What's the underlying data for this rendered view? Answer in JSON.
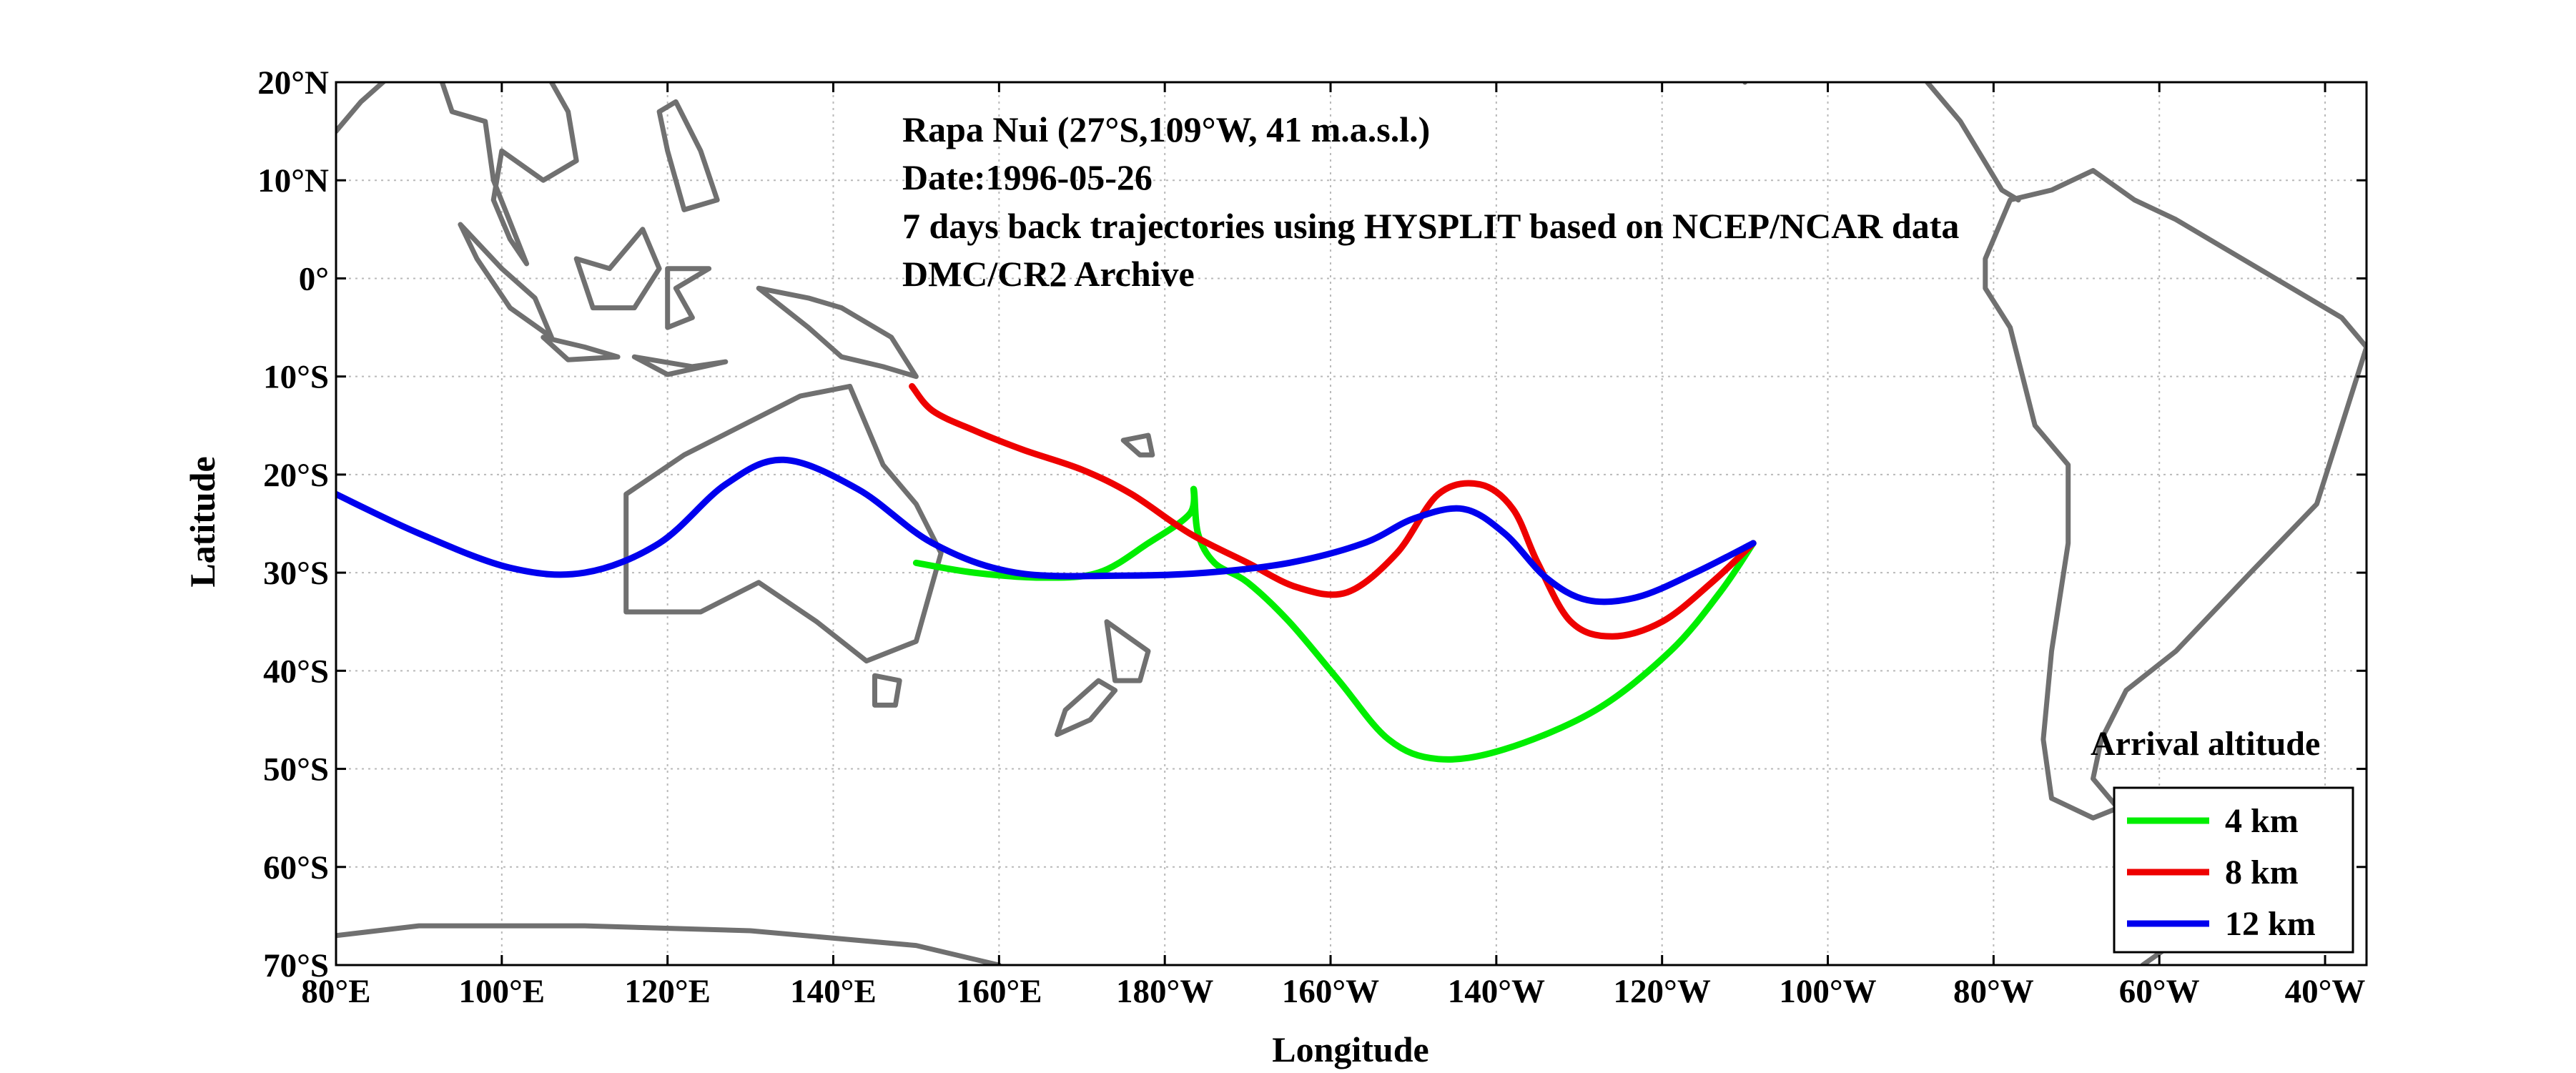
{
  "map": {
    "title_lines": [
      "Rapa Nui (27°S,109°W, 41 m.a.s.l.)",
      "Date:1996-05-26",
      "7 days back trajectories using HYSPLIT based on NCEP/NCAR data",
      "DMC/CR2 Archive"
    ],
    "xlabel": "Longitude",
    "ylabel": "Latitude",
    "lat_ticks": [
      20,
      10,
      0,
      -10,
      -20,
      -30,
      -40,
      -50,
      -60,
      -70
    ],
    "lat_tick_labels": [
      "20°N",
      "10°N",
      "0°",
      "10°S",
      "20°S",
      "30°S",
      "40°S",
      "50°S",
      "60°S",
      "70°S"
    ],
    "lon_ticks": [
      80,
      100,
      120,
      140,
      160,
      180,
      200,
      220,
      240,
      260,
      280,
      300,
      320
    ],
    "lon_tick_labels": [
      "80°E",
      "100°E",
      "120°E",
      "140°E",
      "160°E",
      "180°W",
      "160°W",
      "140°W",
      "120°W",
      "100°W",
      "80°W",
      "60°W",
      "40°W"
    ],
    "lon_range": [
      80,
      325
    ],
    "lat_range": [
      -70,
      20
    ],
    "grid": true,
    "legend": {
      "title": "Arrival altitude",
      "placement": "bottom-right",
      "entries": [
        "4 km",
        "8 km",
        "12 km"
      ]
    },
    "colors": {
      "coast": "#707070",
      "4km": "#00ee00",
      "8km": "#ee0000",
      "12km": "#0000ee"
    },
    "trajectories": [
      {
        "name": "4 km",
        "color": "#00ee00",
        "points": [
          [
            251,
            -27
          ],
          [
            247,
            -32
          ],
          [
            241,
            -38
          ],
          [
            232,
            -44
          ],
          [
            221,
            -48
          ],
          [
            213,
            -49
          ],
          [
            207,
            -47
          ],
          [
            201,
            -41
          ],
          [
            195,
            -35
          ],
          [
            190,
            -31
          ],
          [
            186,
            -29
          ],
          [
            184,
            -26
          ],
          [
            183.5,
            -21.5
          ],
          [
            183,
            -24
          ],
          [
            178,
            -27
          ],
          [
            172,
            -30
          ],
          [
            165,
            -30.5
          ],
          [
            157,
            -30
          ],
          [
            150,
            -29
          ]
        ]
      },
      {
        "name": "8 km",
        "color": "#ee0000",
        "points": [
          [
            251,
            -27
          ],
          [
            246,
            -31
          ],
          [
            240,
            -35
          ],
          [
            234,
            -36.5
          ],
          [
            229,
            -35
          ],
          [
            225,
            -29
          ],
          [
            222,
            -23.5
          ],
          [
            218,
            -21
          ],
          [
            213,
            -22
          ],
          [
            208,
            -28
          ],
          [
            202,
            -32
          ],
          [
            196,
            -31.5
          ],
          [
            190,
            -29
          ],
          [
            183,
            -26
          ],
          [
            176,
            -22
          ],
          [
            170,
            -19.5
          ],
          [
            163,
            -17.5
          ],
          [
            157,
            -15.5
          ],
          [
            152,
            -13.5
          ],
          [
            149.5,
            -11
          ]
        ]
      },
      {
        "name": "12 km",
        "color": "#0000ee",
        "points": [
          [
            251,
            -27
          ],
          [
            244,
            -30
          ],
          [
            237,
            -32.5
          ],
          [
            231,
            -32.8
          ],
          [
            226,
            -30.5
          ],
          [
            221,
            -26
          ],
          [
            216,
            -23.5
          ],
          [
            210,
            -24.5
          ],
          [
            204,
            -27
          ],
          [
            195,
            -29
          ],
          [
            185,
            -30
          ],
          [
            175,
            -30.3
          ],
          [
            162,
            -30
          ],
          [
            152,
            -27
          ],
          [
            143,
            -21.5
          ],
          [
            134,
            -18.5
          ],
          [
            127,
            -21
          ],
          [
            119,
            -27
          ],
          [
            110,
            -30
          ],
          [
            101,
            -29.5
          ],
          [
            90,
            -26
          ],
          [
            80,
            -22
          ]
        ]
      }
    ],
    "coastlines": [
      [
        [
          115,
          -34
        ],
        [
          115,
          -22
        ],
        [
          122,
          -18
        ],
        [
          129,
          -15
        ],
        [
          136,
          -12
        ],
        [
          142,
          -11
        ],
        [
          146,
          -19
        ],
        [
          150,
          -23
        ],
        [
          153,
          -28
        ],
        [
          150,
          -37
        ],
        [
          144,
          -39
        ],
        [
          138,
          -35
        ],
        [
          131,
          -31
        ],
        [
          124,
          -34
        ],
        [
          115,
          -34
        ]
      ],
      [
        [
          145,
          -40.5
        ],
        [
          148,
          -41
        ],
        [
          147.5,
          -43.5
        ],
        [
          145,
          -43.5
        ],
        [
          145,
          -40.5
        ]
      ],
      [
        [
          173,
          -35
        ],
        [
          178,
          -38
        ],
        [
          177,
          -41
        ],
        [
          174,
          -41
        ],
        [
          173,
          -35
        ]
      ],
      [
        [
          172,
          -41
        ],
        [
          174,
          -42
        ],
        [
          171,
          -45
        ],
        [
          167,
          -46.5
        ],
        [
          168,
          -44
        ],
        [
          172,
          -41
        ]
      ],
      [
        [
          131,
          -1
        ],
        [
          137,
          -2
        ],
        [
          141,
          -3
        ],
        [
          147,
          -6
        ],
        [
          150,
          -10
        ],
        [
          146,
          -9
        ],
        [
          141,
          -8
        ],
        [
          137,
          -5
        ],
        [
          131,
          -1
        ]
      ],
      [
        [
          116,
          -8
        ],
        [
          123,
          -9
        ],
        [
          127,
          -8.5
        ],
        [
          120,
          -9.8
        ],
        [
          116,
          -8
        ]
      ],
      [
        [
          105,
          -6
        ],
        [
          110,
          -7
        ],
        [
          114,
          -8
        ],
        [
          108,
          -8.3
        ],
        [
          105,
          -6
        ]
      ],
      [
        [
          95,
          5.5
        ],
        [
          100,
          1
        ],
        [
          104,
          -2
        ],
        [
          106,
          -6
        ],
        [
          101,
          -3
        ],
        [
          97,
          2
        ],
        [
          95,
          5.5
        ]
      ],
      [
        [
          109,
          2
        ],
        [
          113,
          1
        ],
        [
          117,
          5
        ],
        [
          119,
          1
        ],
        [
          116,
          -3
        ],
        [
          111,
          -3
        ],
        [
          109,
          2
        ]
      ],
      [
        [
          120,
          1
        ],
        [
          125,
          1
        ],
        [
          121,
          -1
        ],
        [
          123,
          -4
        ],
        [
          120,
          -5
        ],
        [
          120,
          1
        ]
      ],
      [
        [
          119,
          17
        ],
        [
          121,
          18
        ],
        [
          124,
          13
        ],
        [
          126,
          8
        ],
        [
          122,
          7
        ],
        [
          120,
          13
        ],
        [
          119,
          17
        ]
      ],
      [
        [
          80,
          15
        ],
        [
          83,
          18
        ],
        [
          87,
          21
        ],
        [
          92,
          22
        ],
        [
          94,
          17
        ],
        [
          98,
          16
        ],
        [
          99,
          10
        ],
        [
          103,
          1.5
        ],
        [
          101,
          4
        ],
        [
          99,
          8
        ],
        [
          100,
          13
        ],
        [
          105,
          10
        ],
        [
          109,
          12
        ],
        [
          108,
          17
        ],
        [
          106,
          20
        ]
      ],
      [
        [
          80,
          -67
        ],
        [
          90,
          -66
        ],
        [
          110,
          -66
        ],
        [
          130,
          -66.5
        ],
        [
          150,
          -68
        ],
        [
          160,
          -70
        ]
      ],
      [
        [
          298,
          -70
        ],
        [
          303,
          -67
        ],
        [
          310,
          -66
        ]
      ],
      [
        [
          279,
          -1
        ],
        [
          282,
          -5
        ],
        [
          285,
          -15
        ],
        [
          289,
          -19
        ],
        [
          289,
          -27
        ],
        [
          287,
          -38
        ],
        [
          286,
          -47
        ],
        [
          287,
          -53
        ],
        [
          292,
          -55
        ],
        [
          295,
          -54
        ],
        [
          292,
          -51
        ],
        [
          293,
          -47
        ],
        [
          296,
          -42
        ],
        [
          302,
          -38
        ],
        [
          311,
          -30
        ],
        [
          319,
          -23
        ],
        [
          322,
          -15
        ],
        [
          325,
          -7
        ],
        [
          322,
          -4
        ],
        [
          316,
          -1
        ],
        [
          310,
          2
        ],
        [
          302,
          6
        ],
        [
          297,
          8
        ],
        [
          292,
          11
        ],
        [
          287,
          9
        ],
        [
          282,
          8
        ],
        [
          279,
          2
        ],
        [
          279,
          -1
        ]
      ],
      [
        [
          272,
          20
        ],
        [
          276,
          16
        ],
        [
          281,
          9
        ],
        [
          283,
          8
        ]
      ],
      [
        [
          250,
          20
        ],
        [
          248,
          24
        ],
        [
          243,
          30
        ],
        [
          236,
          37
        ],
        [
          233,
          42
        ],
        [
          236,
          48
        ],
        [
          230,
          55
        ],
        [
          215,
          60
        ],
        [
          205,
          58
        ]
      ],
      [
        [
          175,
          -16.5
        ],
        [
          178,
          -16
        ],
        [
          178.5,
          -18
        ],
        [
          177,
          -18
        ],
        [
          175,
          -16.5
        ]
      ]
    ]
  }
}
